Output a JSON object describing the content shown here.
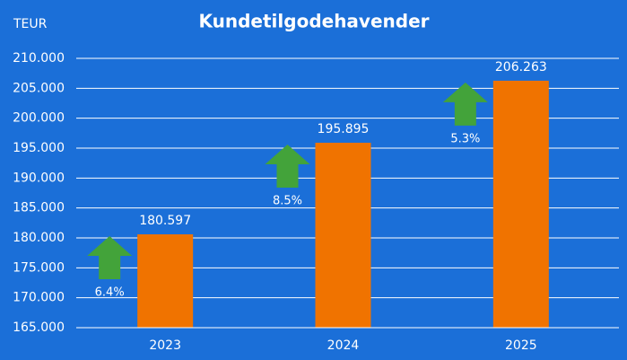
{
  "chart_data": {
    "type": "bar",
    "title": "Kundetilgodehavender",
    "y_label": "TEUR",
    "categories": [
      "2023",
      "2024",
      "2025"
    ],
    "values": [
      180597,
      195895,
      206263
    ],
    "value_labels": [
      "180.597",
      "195.895",
      "206.263"
    ],
    "annotations": [
      "6.4%",
      "8.5%",
      "5.3%"
    ],
    "color": "#f07300",
    "annotation_color": "#43a33a",
    "ylim": [
      165000,
      210000
    ],
    "yticks": [
      {
        "value": 165000,
        "label": "165.000"
      },
      {
        "value": 170000,
        "label": "170.000"
      },
      {
        "value": 175000,
        "label": "175.000"
      },
      {
        "value": 180000,
        "label": "180.000"
      },
      {
        "value": 185000,
        "label": "185.000"
      },
      {
        "value": 190000,
        "label": "190.000"
      },
      {
        "value": 195000,
        "label": "195.000"
      },
      {
        "value": 200000,
        "label": "200.000"
      },
      {
        "value": 205000,
        "label": "205.000"
      },
      {
        "value": 210000,
        "label": "210.000"
      }
    ],
    "grid": true
  }
}
